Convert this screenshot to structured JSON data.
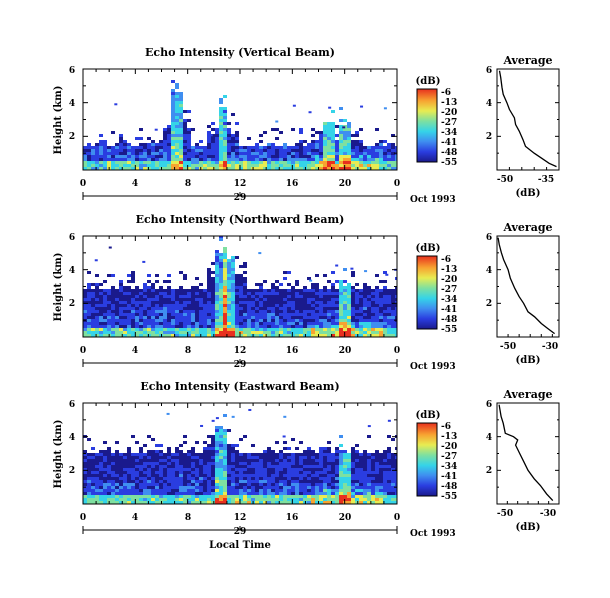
{
  "chart_data": [
    {
      "type": "heatmap",
      "title": "Echo Intensity (Vertical Beam)",
      "ylabel": "Height (km)",
      "xticks": [
        "0",
        "4",
        "8",
        "12",
        "16",
        "20",
        "0"
      ],
      "yticks": [
        "2",
        "4",
        "6"
      ],
      "xlim": [
        0,
        24
      ],
      "ylim": [
        0,
        6
      ],
      "date_day": "29",
      "date_label": "Oct 1993",
      "colorbar": {
        "unit": "(dB)",
        "ticks": [
          "-6",
          "-13",
          "-20",
          "-27",
          "-34",
          "-41",
          "-48",
          "-55"
        ]
      },
      "cloud_top_km": 1.6,
      "features": [
        {
          "x": 10.7,
          "top": 4.0
        },
        {
          "x": 18.7,
          "top": 2.9
        },
        {
          "x": 20.0,
          "top": 3.0
        },
        {
          "x": 7.2,
          "top": 4.8
        }
      ],
      "profile": {
        "title": "Average",
        "xlabel": "(dB)",
        "xticks": [
          "-50",
          "-35"
        ],
        "xlim": [
          -55,
          -30
        ],
        "ylim": [
          0,
          6
        ],
        "yticks": [
          "2",
          "4",
          "6"
        ],
        "x": [
          -54,
          -53.5,
          -53,
          -52.5,
          -51,
          -50,
          -48,
          -47.5,
          -46,
          -44.5,
          -43.5,
          -40,
          -37,
          -34,
          -31
        ],
        "y": [
          5.9,
          5.5,
          4.9,
          4.5,
          4.0,
          3.6,
          3.1,
          2.7,
          2.3,
          1.8,
          1.4,
          1.0,
          0.7,
          0.4,
          0.2
        ]
      }
    },
    {
      "type": "heatmap",
      "title": "Echo Intensity (Northward Beam)",
      "ylabel": "Height (km)",
      "xticks": [
        "0",
        "4",
        "8",
        "12",
        "16",
        "20",
        "0"
      ],
      "yticks": [
        "2",
        "4",
        "6"
      ],
      "xlim": [
        0,
        24
      ],
      "ylim": [
        0,
        6
      ],
      "date_day": "29",
      "date_label": "Oct 1993",
      "colorbar": {
        "unit": "(dB)",
        "ticks": [
          "-6",
          "-13",
          "-20",
          "-27",
          "-34",
          "-41",
          "-48",
          "-55"
        ]
      },
      "cloud_top_km": 3.1,
      "features": [
        {
          "x": 10.6,
          "top": 5.3
        },
        {
          "x": 11.3,
          "top": 4.8
        },
        {
          "x": 20.0,
          "top": 3.2
        }
      ],
      "profile": {
        "title": "Average",
        "xlabel": "(dB)",
        "xticks": [
          "-50",
          "-30"
        ],
        "xlim": [
          -55,
          -27
        ],
        "ylim": [
          0,
          6
        ],
        "yticks": [
          "2",
          "4",
          "6"
        ],
        "x": [
          -54.5,
          -54,
          -53,
          -52,
          -50,
          -49,
          -47,
          -45,
          -43,
          -41,
          -38,
          -35,
          -32,
          -29
        ],
        "y": [
          5.9,
          5.5,
          5.0,
          4.6,
          4.0,
          3.5,
          2.9,
          2.4,
          2.0,
          1.5,
          1.2,
          0.8,
          0.5,
          0.2
        ]
      }
    },
    {
      "type": "heatmap",
      "title": "Echo Intensity (Eastward Beam)",
      "ylabel": "Height (km)",
      "xticks": [
        "0",
        "4",
        "8",
        "12",
        "16",
        "20",
        "0"
      ],
      "yticks": [
        "2",
        "4",
        "6"
      ],
      "xlim": [
        0,
        24
      ],
      "ylim": [
        0,
        6
      ],
      "date_day": "29",
      "date_label": "Oct 1993",
      "xlabel": "Local Time",
      "colorbar": {
        "unit": "(dB)",
        "ticks": [
          "-6",
          "-13",
          "-20",
          "-27",
          "-34",
          "-41",
          "-48",
          "-55"
        ]
      },
      "cloud_top_km": 3.2,
      "features": [
        {
          "x": 10.5,
          "top": 4.4
        },
        {
          "x": 20.0,
          "top": 3.2
        }
      ],
      "profile": {
        "title": "Average",
        "xlabel": "(dB)",
        "xticks": [
          "-50",
          "-30"
        ],
        "xlim": [
          -55,
          -25
        ],
        "ylim": [
          0,
          6
        ],
        "yticks": [
          "2",
          "4",
          "6"
        ],
        "x": [
          -54,
          -53,
          -52,
          -51,
          -47,
          -45,
          -46,
          -44,
          -42,
          -40,
          -37,
          -34,
          -31,
          -28
        ],
        "y": [
          5.9,
          5.2,
          4.8,
          4.2,
          4.0,
          3.8,
          3.5,
          3.0,
          2.5,
          2.0,
          1.5,
          1.1,
          0.6,
          0.2
        ]
      }
    }
  ]
}
